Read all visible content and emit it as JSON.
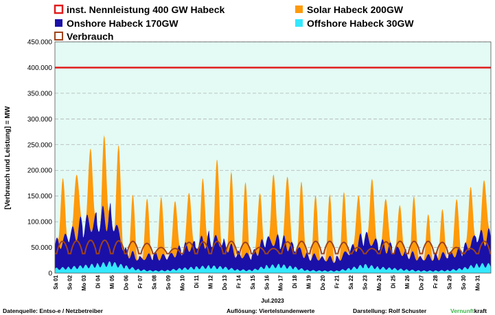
{
  "chart_data": {
    "type": "area",
    "ylabel": "[Verbrauch und Leistung] =  MW",
    "xlabel": "Jul.2023",
    "ylim": [
      0,
      450000
    ],
    "yticks": [
      "0",
      "50.000",
      "100.000",
      "150.000",
      "200.000",
      "250.000",
      "300.000",
      "350.000",
      "400.000",
      "450.000"
    ],
    "ytick_values": [
      0,
      50000,
      100000,
      150000,
      200000,
      250000,
      300000,
      350000,
      400000,
      450000
    ],
    "grid": true,
    "legend_position": "top",
    "x_categories": [
      "Sa 01",
      "So 02",
      "Mo 03",
      "Di 04",
      "Mi 05",
      "Do 06",
      "Fr 07",
      "Sa 08",
      "So 09",
      "Mo 10",
      "Di 11",
      "Mi 12",
      "Do 13",
      "Fr 14",
      "Sa 15",
      "So 16",
      "Mo 17",
      "Di 18",
      "Mi 19",
      "Do 20",
      "Fr 21",
      "Sa 22",
      "So 23",
      "Mo 24",
      "Di 25",
      "Mi 26",
      "Do 27",
      "Fr 28",
      "Sa 29",
      "So 30",
      "Mo 31"
    ],
    "reference_line": {
      "name": "inst. Nennleistung 400 GW Habeck",
      "value": 400000,
      "color": "#e11b1b"
    },
    "series": [
      {
        "name": "Solar Habeck 200GW",
        "color": "#ff9a0a",
        "daily_peak": [
          125000,
          130000,
          160000,
          155000,
          165000,
          110000,
          112000,
          118000,
          110000,
          115000,
          120000,
          153000,
          140000,
          140000,
          107000,
          140000,
          145000,
          136000,
          117000,
          120000,
          118000,
          95000,
          130000,
          105000,
          90000,
          112000,
          78000,
          85000,
          107000,
          116000,
          125000
        ]
      },
      {
        "name": "Onshore Habeck 170GW",
        "color": "#1a10a8",
        "daily_avg": [
          45000,
          60000,
          80000,
          85000,
          95000,
          30000,
          22000,
          30000,
          25000,
          38000,
          45000,
          55000,
          48000,
          30000,
          28000,
          50000,
          48000,
          40000,
          28000,
          25000,
          22000,
          35000,
          55000,
          45000,
          40000,
          32000,
          25000,
          28000,
          30000,
          35000,
          55000
        ]
      },
      {
        "name": "Offshore Habeck 30GW",
        "color": "#33e8ff",
        "daily_avg": [
          8000,
          10000,
          12000,
          15000,
          18000,
          12000,
          6000,
          4000,
          5000,
          8000,
          10000,
          12000,
          10000,
          6000,
          5000,
          12000,
          14000,
          10000,
          5000,
          4000,
          4000,
          8000,
          14000,
          10000,
          8000,
          6000,
          4000,
          4000,
          5000,
          8000,
          15000
        ]
      },
      {
        "name": "Verbrauch",
        "color": "#a0431a",
        "daily_peak": [
          62000,
          63000,
          64000,
          64000,
          63000,
          62000,
          58000,
          50000,
          48000,
          60000,
          61000,
          62000,
          62000,
          60000,
          50000,
          48000,
          61000,
          62000,
          62000,
          62000,
          60000,
          50000,
          48000,
          61000,
          62000,
          62000,
          62000,
          60000,
          50000,
          48000,
          62000
        ],
        "night_min": 38000
      }
    ]
  },
  "legend": {
    "nennleistung": "inst. Nennleistung 400 GW Habeck",
    "solar": "Solar Habeck 200GW",
    "onshore": "Onshore Habeck 170GW",
    "offshore": "Offshore Habeck 30GW",
    "verbrauch": "Verbrauch"
  },
  "footer": {
    "source": "Datenquelle: Entso-e  / Netzbetreiber",
    "resolution": "Auflösung: Viertelstundenwerte",
    "author": "Darstellung:  Rolf Schuster",
    "brand_green": "Vernunft",
    "brand_black": "kraft"
  },
  "colors": {
    "plot_bg": "#e3fbf4",
    "grid": "#b0b0b0",
    "nennleistung": "#e11b1b",
    "solar": "#ff9a0a",
    "onshore": "#1a10a8",
    "offshore": "#33e8ff",
    "verbrauch": "#a0431a",
    "brand_green": "#3cb64a"
  }
}
